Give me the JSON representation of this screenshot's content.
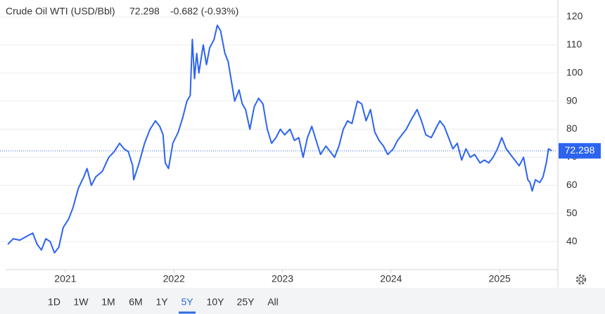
{
  "chart_data": {
    "type": "line",
    "title": "Crude Oil WTI (USD/Bbl)",
    "change_label": "-0.682 (-0.93%)",
    "change_color": "#e0524f",
    "price_color": "#2f6be6",
    "grid": true,
    "ylim": [
      30,
      126
    ],
    "yticks": [
      40,
      50,
      60,
      70,
      80,
      90,
      100,
      110,
      120
    ],
    "xlim": [
      2020.45,
      2025.53
    ],
    "xticks": [
      2021,
      2022,
      2023,
      2024,
      2025
    ],
    "x": [
      2020.47,
      2020.52,
      2020.58,
      2020.65,
      2020.7,
      2020.74,
      2020.78,
      2020.82,
      2020.86,
      2020.9,
      2020.94,
      2020.98,
      2021.03,
      2021.07,
      2021.12,
      2021.17,
      2021.2,
      2021.24,
      2021.28,
      2021.34,
      2021.4,
      2021.45,
      2021.5,
      2021.54,
      2021.58,
      2021.62,
      2021.63,
      2021.68,
      2021.73,
      2021.78,
      2021.83,
      2021.87,
      2021.9,
      2021.92,
      2021.95,
      2021.99,
      2022.04,
      2022.08,
      2022.12,
      2022.15,
      2022.17,
      2022.19,
      2022.21,
      2022.23,
      2022.27,
      2022.3,
      2022.33,
      2022.37,
      2022.4,
      2022.43,
      2022.47,
      2022.5,
      2022.53,
      2022.56,
      2022.6,
      2022.63,
      2022.66,
      2022.7,
      2022.74,
      2022.78,
      2022.82,
      2022.86,
      2022.9,
      2022.94,
      2022.98,
      2023.02,
      2023.07,
      2023.11,
      2023.15,
      2023.19,
      2023.23,
      2023.27,
      2023.31,
      2023.35,
      2023.4,
      2023.44,
      2023.48,
      2023.52,
      2023.56,
      2023.6,
      2023.64,
      2023.69,
      2023.73,
      2023.77,
      2023.81,
      2023.85,
      2023.89,
      2023.93,
      2023.97,
      2024.02,
      2024.06,
      2024.1,
      2024.14,
      2024.18,
      2024.24,
      2024.28,
      2024.32,
      2024.37,
      2024.41,
      2024.45,
      2024.49,
      2024.53,
      2024.57,
      2024.61,
      2024.65,
      2024.69,
      2024.73,
      2024.77,
      2024.82,
      2024.86,
      2024.9,
      2024.94,
      2024.98,
      2025.02,
      2025.06,
      2025.1,
      2025.14,
      2025.18,
      2025.22,
      2025.26,
      2025.28,
      2025.3,
      2025.33,
      2025.37,
      2025.4,
      2025.43,
      2025.45,
      2025.48
    ],
    "series": [
      {
        "name": "Crude Oil WTI",
        "color": "#2c64f0",
        "values": [
          39,
          41,
          40.5,
          42,
          43,
          39,
          37,
          41,
          40,
          36,
          38,
          45,
          48,
          52,
          59,
          63,
          66,
          60,
          63,
          65,
          70,
          72,
          75,
          73,
          72,
          67,
          62,
          68,
          75,
          80,
          83,
          81,
          78,
          68,
          66,
          75,
          79,
          84,
          90,
          92,
          112,
          98,
          107,
          100,
          110,
          103,
          109,
          112,
          117,
          115,
          107,
          104,
          97,
          90,
          94,
          89,
          87,
          80,
          88,
          91,
          89,
          80,
          75,
          77,
          80,
          78,
          80,
          76,
          77,
          70,
          77,
          81,
          76,
          71,
          74,
          72,
          70,
          74,
          80,
          83,
          82,
          90,
          89,
          83,
          87,
          79,
          76,
          74,
          71,
          73,
          76,
          78,
          80,
          83,
          87,
          83,
          78,
          77,
          80,
          83,
          81,
          77,
          73,
          75,
          69,
          73,
          70,
          71,
          68,
          69,
          68,
          70,
          73,
          77,
          73,
          71,
          69,
          67,
          70,
          62,
          61,
          58,
          62,
          61,
          63,
          68,
          73,
          72.298
        ]
      }
    ],
    "range_buttons": [
      "1D",
      "1W",
      "1M",
      "6M",
      "1Y",
      "5Y",
      "10Y",
      "25Y",
      "All"
    ],
    "active_range": "5Y"
  }
}
